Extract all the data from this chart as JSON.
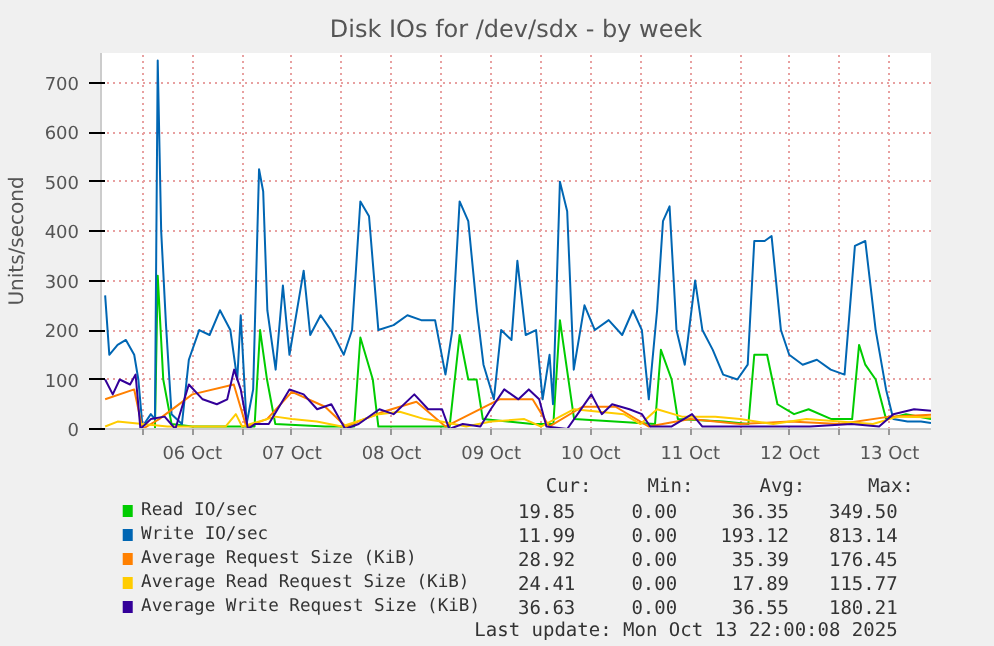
{
  "chart_data": {
    "type": "line",
    "title": "Disk IOs for /dev/sdx - by week",
    "ylabel": "Units/second",
    "xlim": [
      "2025-10-05T14:00",
      "2025-10-13T22:00"
    ],
    "xticks": [
      {
        "value": "2025-10-06T00:00",
        "label": null
      },
      {
        "value": "2025-10-06T12:00",
        "label": "06 Oct"
      },
      {
        "value": "2025-10-07T00:00",
        "label": null
      },
      {
        "value": "2025-10-07T12:00",
        "label": "07 Oct"
      },
      {
        "value": "2025-10-08T00:00",
        "label": null
      },
      {
        "value": "2025-10-08T12:00",
        "label": "08 Oct"
      },
      {
        "value": "2025-10-09T00:00",
        "label": null
      },
      {
        "value": "2025-10-09T12:00",
        "label": "09 Oct"
      },
      {
        "value": "2025-10-10T00:00",
        "label": null
      },
      {
        "value": "2025-10-10T12:00",
        "label": "10 Oct"
      },
      {
        "value": "2025-10-11T00:00",
        "label": null
      },
      {
        "value": "2025-10-11T12:00",
        "label": "11 Oct"
      },
      {
        "value": "2025-10-12T00:00",
        "label": null
      },
      {
        "value": "2025-10-12T12:00",
        "label": "12 Oct"
      },
      {
        "value": "2025-10-13T00:00",
        "label": null
      },
      {
        "value": "2025-10-13T12:00",
        "label": "13 Oct"
      }
    ],
    "ylim": [
      0,
      760
    ],
    "yticks": [
      0,
      100,
      200,
      300,
      400,
      500,
      600,
      700
    ],
    "grid": true,
    "legend": "bottom",
    "series": [
      {
        "name": "Read IO/sec",
        "color": "#00cc00",
        "x": [
          "2025-10-05T15:00",
          "2025-10-06T03:00",
          "2025-10-06T03:40",
          "2025-10-06T05:00",
          "2025-10-06T07:00",
          "2025-10-06T12:00",
          "2025-10-07T03:00",
          "2025-10-07T04:20",
          "2025-10-07T06:00",
          "2025-10-07T08:00",
          "2025-10-07T20:00",
          "2025-10-08T03:00",
          "2025-10-08T04:30",
          "2025-10-08T07:30",
          "2025-10-08T08:50",
          "2025-10-09T02:00",
          "2025-10-09T04:25",
          "2025-10-09T06:30",
          "2025-10-09T08:30",
          "2025-10-09T10:00",
          "2025-10-09T22:00",
          "2025-10-10T03:00",
          "2025-10-10T04:35",
          "2025-10-10T08:00",
          "2025-10-11T03:30",
          "2025-10-11T04:55",
          "2025-10-11T07:30",
          "2025-10-11T09:00",
          "2025-10-11T20:00",
          "2025-10-12T02:00",
          "2025-10-12T03:25",
          "2025-10-12T06:30",
          "2025-10-12T09:00",
          "2025-10-12T13:00",
          "2025-10-12T16:30",
          "2025-10-12T22:00",
          "2025-10-13T03:00",
          "2025-10-13T04:40",
          "2025-10-13T06:10",
          "2025-10-13T08:40",
          "2025-10-13T11:10",
          "2025-10-13T16:00",
          "2025-10-13T22:00"
        ],
        "values": [
          0,
          0,
          310,
          100,
          10,
          5,
          5,
          200,
          100,
          10,
          5,
          5,
          185,
          100,
          5,
          5,
          190,
          100,
          100,
          20,
          10,
          10,
          220,
          20,
          10,
          160,
          100,
          20,
          15,
          10,
          150,
          150,
          50,
          30,
          40,
          20,
          20,
          170,
          130,
          100,
          20,
          30,
          20
        ]
      },
      {
        "name": "Write IO/sec",
        "color": "#0066b3",
        "x": [
          "2025-10-05T15:00",
          "2025-10-05T16:00",
          "2025-10-05T18:00",
          "2025-10-05T20:00",
          "2025-10-05T22:00",
          "2025-10-05T23:00",
          "2025-10-06T00:00",
          "2025-10-06T02:00",
          "2025-10-06T03:00",
          "2025-10-06T03:40",
          "2025-10-06T04:30",
          "2025-10-06T05:40",
          "2025-10-06T07:00",
          "2025-10-06T09:30",
          "2025-10-06T11:10",
          "2025-10-06T13:40",
          "2025-10-06T16:10",
          "2025-10-06T18:40",
          "2025-10-06T21:10",
          "2025-10-06T22:50",
          "2025-10-06T23:40",
          "2025-10-07T01:05",
          "2025-10-07T02:40",
          "2025-10-07T04:05",
          "2025-10-07T05:05",
          "2025-10-07T06:05",
          "2025-10-07T08:05",
          "2025-10-07T09:50",
          "2025-10-07T11:25",
          "2025-10-07T14:50",
          "2025-10-07T16:25",
          "2025-10-07T18:55",
          "2025-10-07T21:25",
          "2025-10-08T00:30",
          "2025-10-08T02:30",
          "2025-10-08T04:30",
          "2025-10-08T06:35",
          "2025-10-08T08:50",
          "2025-10-08T12:30",
          "2025-10-08T15:50",
          "2025-10-08T19:10",
          "2025-10-08T22:30",
          "2025-10-09T01:00",
          "2025-10-09T02:40",
          "2025-10-09T04:25",
          "2025-10-09T06:30",
          "2025-10-09T08:35",
          "2025-10-09T10:10",
          "2025-10-09T12:40",
          "2025-10-09T14:25",
          "2025-10-09T16:55",
          "2025-10-09T18:20",
          "2025-10-09T20:20",
          "2025-10-09T22:50",
          "2025-10-10T00:25",
          "2025-10-10T02:05",
          "2025-10-10T02:55",
          "2025-10-10T04:35",
          "2025-10-10T06:20",
          "2025-10-10T07:55",
          "2025-10-10T10:30",
          "2025-10-10T13:00",
          "2025-10-10T16:20",
          "2025-10-10T19:35",
          "2025-10-10T22:10",
          "2025-10-11T00:20",
          "2025-10-11T02:00",
          "2025-10-11T04:00",
          "2025-10-11T05:25",
          "2025-10-11T07:00",
          "2025-10-11T08:40",
          "2025-10-11T10:40",
          "2025-10-11T13:10",
          "2025-10-11T14:55",
          "2025-10-11T17:25",
          "2025-10-11T19:55",
          "2025-10-11T23:20",
          "2025-10-12T01:50",
          "2025-10-12T03:25",
          "2025-10-12T05:55",
          "2025-10-12T07:35",
          "2025-10-12T09:50",
          "2025-10-12T11:50",
          "2025-10-12T15:05",
          "2025-10-12T18:30",
          "2025-10-12T21:50",
          "2025-10-13T01:10",
          "2025-10-13T03:40",
          "2025-10-13T06:10",
          "2025-10-13T08:40",
          "2025-10-13T11:10",
          "2025-10-13T12:55",
          "2025-10-13T16:20",
          "2025-10-13T19:35",
          "2025-10-13T22:00"
        ],
        "values": [
          270,
          150,
          170,
          180,
          150,
          100,
          5,
          30,
          20,
          745,
          400,
          210,
          30,
          10,
          140,
          200,
          190,
          240,
          200,
          100,
          230,
          10,
          80,
          525,
          480,
          240,
          120,
          290,
          150,
          320,
          190,
          230,
          200,
          150,
          200,
          460,
          430,
          200,
          210,
          230,
          220,
          220,
          110,
          200,
          460,
          420,
          240,
          130,
          60,
          200,
          180,
          340,
          190,
          200,
          60,
          150,
          50,
          500,
          440,
          120,
          250,
          200,
          220,
          190,
          240,
          200,
          60,
          240,
          420,
          450,
          200,
          130,
          300,
          200,
          160,
          110,
          100,
          130,
          380,
          380,
          390,
          200,
          150,
          130,
          140,
          120,
          110,
          370,
          380,
          200,
          80,
          20,
          15,
          15,
          12
        ]
      },
      {
        "name": "Average Request Size (KiB)",
        "color": "#ff8000",
        "x": [
          "2025-10-05T15:00",
          "2025-10-05T22:00",
          "2025-10-06T00:00",
          "2025-10-06T04:00",
          "2025-10-06T12:00",
          "2025-10-06T22:00",
          "2025-10-07T01:00",
          "2025-10-07T06:00",
          "2025-10-07T12:00",
          "2025-10-07T20:00",
          "2025-10-08T01:00",
          "2025-10-08T10:00",
          "2025-10-08T18:00",
          "2025-10-09T01:00",
          "2025-10-09T14:00",
          "2025-10-09T22:00",
          "2025-10-10T02:00",
          "2025-10-10T10:00",
          "2025-10-10T18:00",
          "2025-10-11T02:00",
          "2025-10-11T12:00",
          "2025-10-12T00:00",
          "2025-10-12T12:00",
          "2025-10-13T00:00",
          "2025-10-13T12:00",
          "2025-10-13T22:00"
        ],
        "values": [
          60,
          80,
          0,
          20,
          70,
          90,
          5,
          20,
          75,
          45,
          5,
          35,
          55,
          5,
          60,
          60,
          5,
          45,
          45,
          5,
          20,
          10,
          15,
          10,
          25,
          29
        ]
      },
      {
        "name": "Average Read Request Size (KiB)",
        "color": "#ffcc00",
        "x": [
          "2025-10-05T15:00",
          "2025-10-05T18:00",
          "2025-10-06T00:00",
          "2025-10-06T06:00",
          "2025-10-06T12:00",
          "2025-10-06T20:00",
          "2025-10-06T22:30",
          "2025-10-07T00:00",
          "2025-10-07T08:00",
          "2025-10-07T12:00",
          "2025-10-07T18:00",
          "2025-10-08T00:00",
          "2025-10-08T09:00",
          "2025-10-08T14:00",
          "2025-10-08T20:00",
          "2025-10-09T00:00",
          "2025-10-09T06:00",
          "2025-10-09T12:00",
          "2025-10-09T20:00",
          "2025-10-10T00:00",
          "2025-10-10T08:00",
          "2025-10-10T14:00",
          "2025-10-10T20:00",
          "2025-10-11T00:00",
          "2025-10-11T04:00",
          "2025-10-11T10:00",
          "2025-10-11T18:00",
          "2025-10-12T00:00",
          "2025-10-12T08:00",
          "2025-10-12T16:00",
          "2025-10-13T00:00",
          "2025-10-13T08:00",
          "2025-10-13T14:00",
          "2025-10-13T22:00"
        ],
        "values": [
          5,
          15,
          10,
          5,
          5,
          5,
          30,
          5,
          25,
          20,
          15,
          5,
          30,
          35,
          20,
          15,
          5,
          15,
          20,
          5,
          40,
          35,
          30,
          10,
          40,
          25,
          25,
          20,
          10,
          20,
          15,
          10,
          25,
          24
        ]
      },
      {
        "name": "Average Write Request Size (KiB)",
        "color": "#330099",
        "x": [
          "2025-10-05T15:00",
          "2025-10-05T16:50",
          "2025-10-05T18:30",
          "2025-10-05T21:00",
          "2025-10-05T22:20",
          "2025-10-05T23:30",
          "2025-10-06T02:00",
          "2025-10-06T05:20",
          "2025-10-06T07:55",
          "2025-10-06T11:10",
          "2025-10-06T14:30",
          "2025-10-06T17:55",
          "2025-10-06T20:25",
          "2025-10-06T22:05",
          "2025-10-06T23:40",
          "2025-10-07T01:25",
          "2025-10-07T03:05",
          "2025-10-07T06:25",
          "2025-10-07T11:25",
          "2025-10-07T14:50",
          "2025-10-07T18:05",
          "2025-10-07T21:30",
          "2025-10-08T00:50",
          "2025-10-08T04:05",
          "2025-10-08T09:05",
          "2025-10-08T12:30",
          "2025-10-08T17:30",
          "2025-10-08T20:50",
          "2025-10-09T00:10",
          "2025-10-09T01:55",
          "2025-10-09T05:10",
          "2025-10-09T09:25",
          "2025-10-09T11:55",
          "2025-10-09T15:10",
          "2025-10-09T18:35",
          "2025-10-09T21:05",
          "2025-10-09T23:35",
          "2025-10-10T01:20",
          "2025-10-10T06:20",
          "2025-10-10T12:10",
          "2025-10-10T14:40",
          "2025-10-10T17:10",
          "2025-10-10T21:20",
          "2025-10-11T00:20",
          "2025-10-11T02:20",
          "2025-10-11T07:25",
          "2025-10-11T12:25",
          "2025-10-11T14:55",
          "2025-10-12T00:05",
          "2025-10-12T08:25",
          "2025-10-12T16:50",
          "2025-10-13T02:50",
          "2025-10-13T09:30",
          "2025-10-13T12:55",
          "2025-10-13T17:55",
          "2025-10-13T22:00"
        ],
        "values": [
          100,
          70,
          100,
          90,
          110,
          0,
          20,
          25,
          0,
          90,
          60,
          50,
          60,
          120,
          80,
          0,
          10,
          10,
          80,
          70,
          40,
          50,
          0,
          10,
          40,
          30,
          70,
          40,
          40,
          0,
          10,
          5,
          40,
          80,
          60,
          80,
          60,
          5,
          0,
          70,
          30,
          50,
          40,
          30,
          5,
          5,
          30,
          5,
          5,
          5,
          5,
          10,
          5,
          30,
          40,
          37
        ]
      }
    ],
    "annotations": [
      "Cur:",
      "Min:",
      "Avg:",
      "Max:",
      "19.85",
      "0.00",
      "36.35",
      "349.50",
      "11.99",
      "0.00",
      "193.12",
      "813.14",
      "28.92",
      "0.00",
      "35.39",
      "176.45",
      "24.41",
      "0.00",
      "17.89",
      "115.77",
      "36.63",
      "0.00",
      "36.55",
      "180.21",
      "Last update: Mon Oct 13 22:00:08 2025"
    ]
  }
}
